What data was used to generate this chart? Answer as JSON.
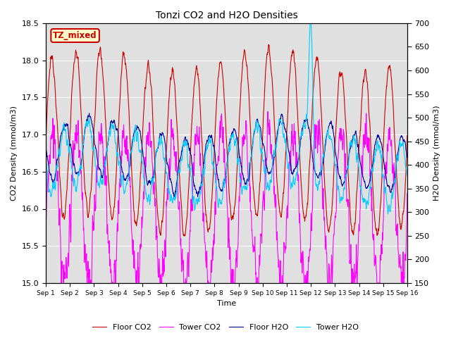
{
  "title": "Tonzi CO2 and H2O Densities",
  "xlabel": "Time",
  "ylabel_left": "CO2 Density (mmol/m3)",
  "ylabel_right": "H2O Density (mmol/m3)",
  "ylim_left": [
    15.0,
    18.5
  ],
  "ylim_right": [
    150,
    700
  ],
  "yticks_left": [
    15.0,
    15.5,
    16.0,
    16.5,
    17.0,
    17.5,
    18.0,
    18.5
  ],
  "yticks_right": [
    150,
    200,
    250,
    300,
    350,
    400,
    450,
    500,
    550,
    600,
    650,
    700
  ],
  "xtick_labels": [
    "Sep 1",
    "Sep 2",
    "Sep 3",
    "Sep 4",
    "Sep 5",
    "Sep 6",
    "Sep 7",
    "Sep 8",
    "Sep 9",
    "Sep 10",
    "Sep 11",
    "Sep 12",
    "Sep 13",
    "Sep 14",
    "Sep 15",
    "Sep 16"
  ],
  "legend_labels": [
    "Floor CO2",
    "Tower CO2",
    "Floor H2O",
    "Tower H2O"
  ],
  "colors": {
    "floor_co2": "#cc0000",
    "tower_co2": "#ff00ff",
    "floor_h2o": "#000099",
    "tower_h2o": "#00ccff"
  },
  "annotation_text": "TZ_mixed",
  "annotation_color": "#cc0000",
  "annotation_bg": "#ffffcc",
  "plot_bg": "#e0e0e0",
  "n_points": 1500,
  "days": 15,
  "figsize": [
    6.4,
    4.8
  ],
  "dpi": 100
}
